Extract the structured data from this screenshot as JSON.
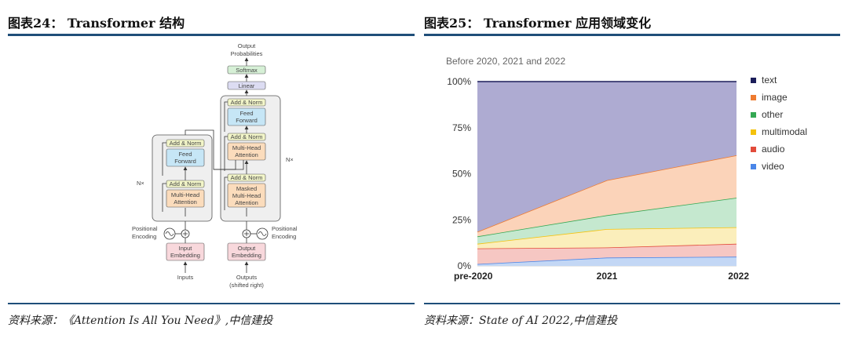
{
  "left_panel": {
    "title": "图表24： Transformer 结构",
    "source": "资料来源：《Attention Is All You Need》,中信建投",
    "diagram": {
      "output_probabilities": [
        "Output",
        "Probabilities"
      ],
      "softmax": "Softmax",
      "linear": "Linear",
      "add_norm": "Add & Norm",
      "feed_forward": [
        "Feed",
        "Forward"
      ],
      "multi_head_attention": [
        "Multi-Head",
        "Attention"
      ],
      "masked_multi_head_attention": [
        "Masked",
        "Multi-Head",
        "Attention"
      ],
      "input_embedding": [
        "Input",
        "Embedding"
      ],
      "output_embedding": [
        "Output",
        "Embedding"
      ],
      "positional_encoding": [
        "Positional",
        "Encoding"
      ],
      "inputs": "Inputs",
      "outputs": [
        "Outputs",
        "(shifted right)"
      ],
      "nx": "N×",
      "colors": {
        "add_norm": "#f2f5c8",
        "feed_forward": "#c6e6f6",
        "attention": "#fbdcbc",
        "embedding": "#f8d8dc",
        "linear": "#dcdcf2",
        "softmax": "#d6f0d6",
        "stack_bg": "#efefef"
      }
    }
  },
  "right_panel": {
    "title": "图表25： Transformer 应用领域变化",
    "source": "资料来源：State of AI 2022,中信建投"
  },
  "chart_data": {
    "type": "area",
    "stacked": true,
    "subtitle": "Before 2020, 2021 and 2022",
    "x": [
      "pre-2020",
      "2021",
      "2022"
    ],
    "ylim": [
      0,
      100
    ],
    "yticks": [
      "0%",
      "25%",
      "50%",
      "75%",
      "100%"
    ],
    "grid": true,
    "legend_position": "right",
    "series": [
      {
        "name": "video",
        "values": [
          1,
          4.5,
          5
        ],
        "color": "#4a86e8",
        "fill": "#c3d7f5"
      },
      {
        "name": "audio",
        "values": [
          8.5,
          5.5,
          7
        ],
        "color": "#e24b3b",
        "fill": "#f6c7c3"
      },
      {
        "name": "multimodal",
        "values": [
          2.5,
          10,
          9
        ],
        "color": "#f4c20d",
        "fill": "#fbeebb"
      },
      {
        "name": "other",
        "values": [
          4,
          7.5,
          16
        ],
        "color": "#34a853",
        "fill": "#c5e8cf"
      },
      {
        "name": "image",
        "values": [
          2.5,
          19,
          23
        ],
        "color": "#ee7b30",
        "fill": "#fbd3b9"
      },
      {
        "name": "text",
        "values": [
          81.5,
          53.5,
          40
        ],
        "color": "#1c1e5a",
        "fill": "#aeabd2"
      }
    ],
    "legend_order": [
      "text",
      "image",
      "other",
      "multimodal",
      "audio",
      "video"
    ]
  }
}
